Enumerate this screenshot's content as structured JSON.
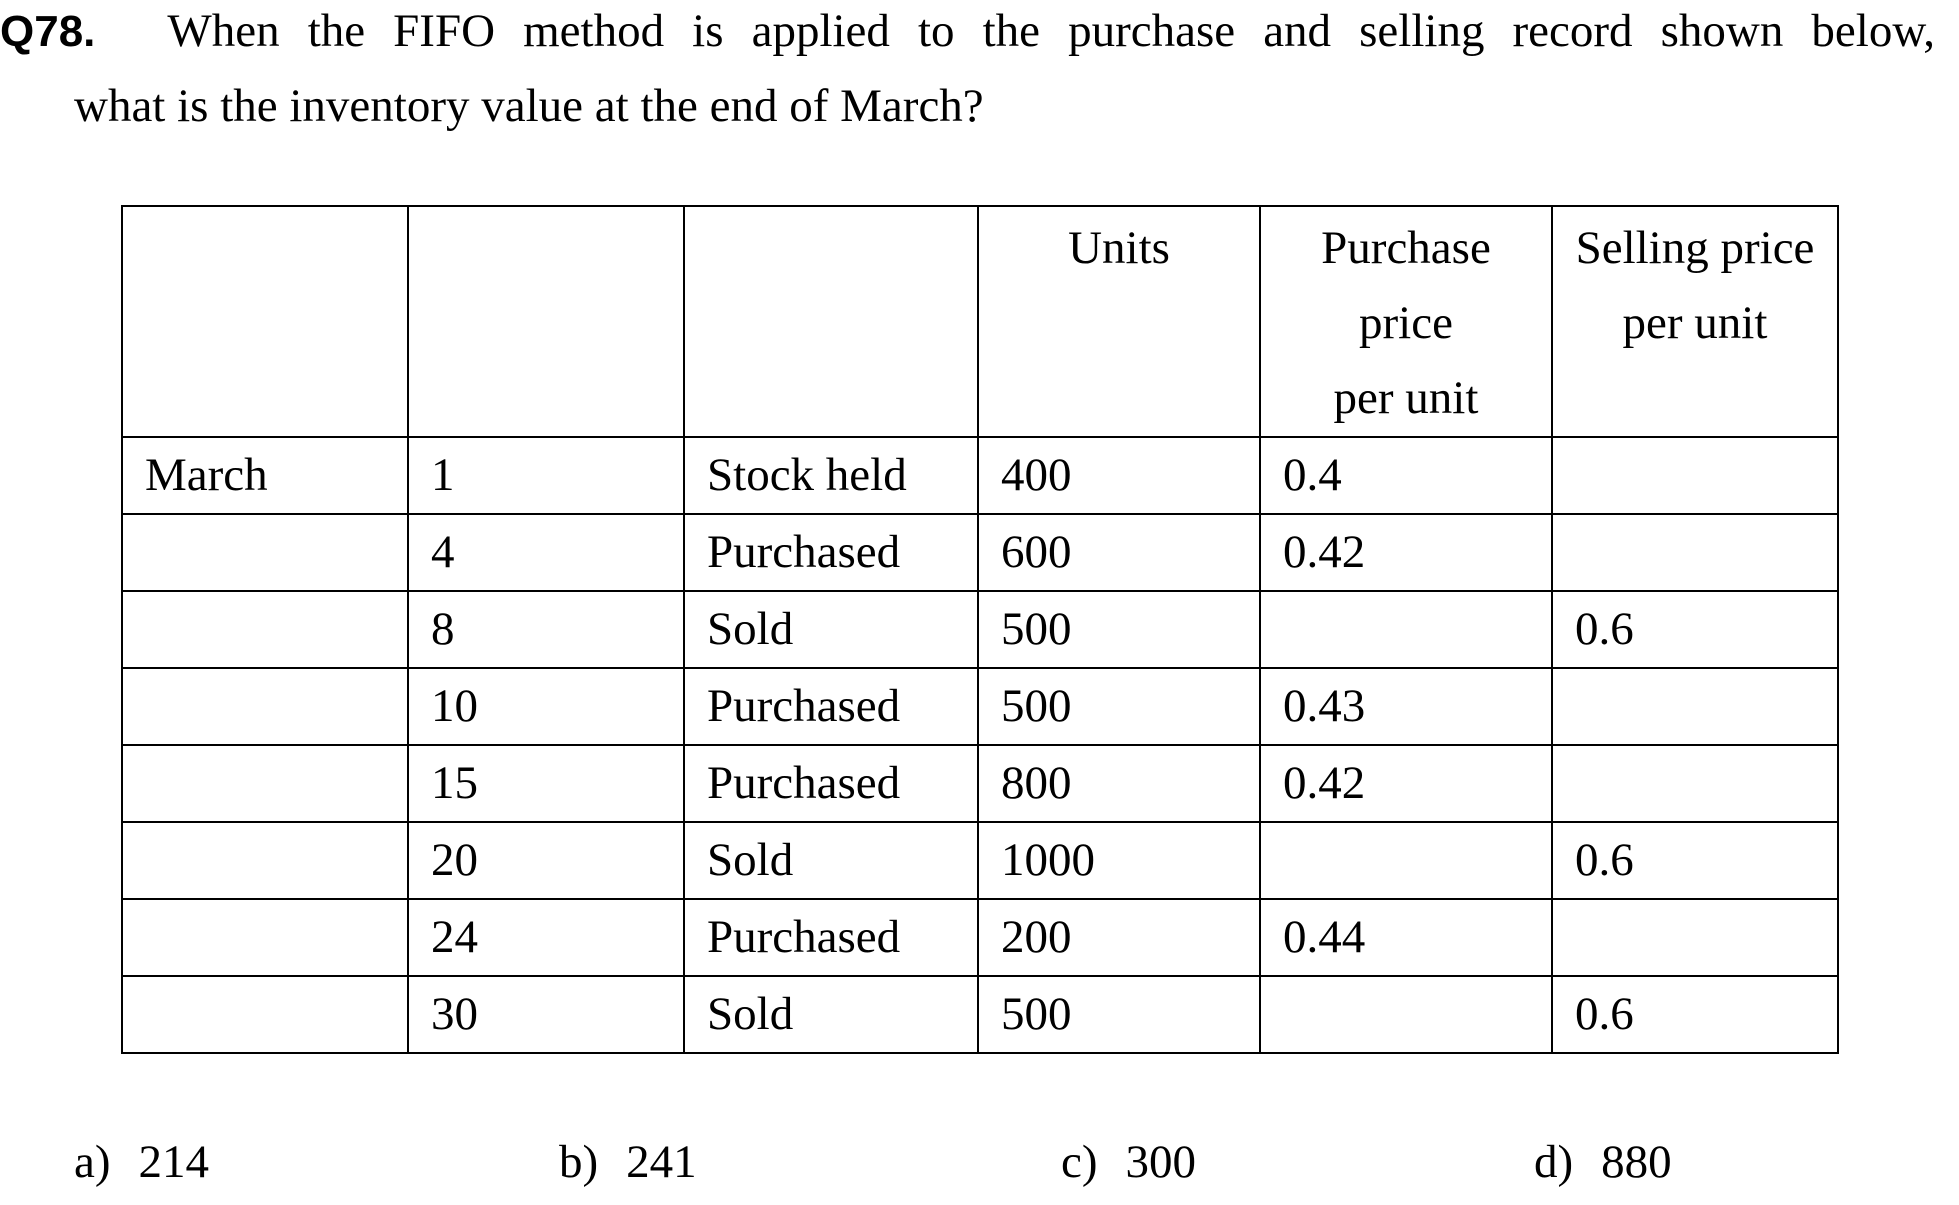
{
  "question": {
    "number": "Q78.",
    "line1_words": [
      "When",
      "the",
      "FIFO",
      "method",
      "is",
      "applied",
      "to",
      "the",
      "purchase",
      "and",
      "selling",
      "record",
      "shown",
      "below,"
    ],
    "line2": "what is the inventory value at the end of March?"
  },
  "table": {
    "headers": [
      "",
      "",
      "",
      "Units",
      "Purchase\nprice\nper unit",
      "Selling price\nper unit"
    ],
    "rows": [
      [
        "March",
        "1",
        "Stock held",
        "400",
        "0.4",
        ""
      ],
      [
        "",
        "4",
        "Purchased",
        "600",
        "0.42",
        ""
      ],
      [
        "",
        "8",
        "Sold",
        "500",
        "",
        "0.6"
      ],
      [
        "",
        "10",
        "Purchased",
        "500",
        "0.43",
        ""
      ],
      [
        "",
        "15",
        "Purchased",
        "800",
        "0.42",
        ""
      ],
      [
        "",
        "20",
        "Sold",
        "1000",
        "",
        "0.6"
      ],
      [
        "",
        "24",
        "Purchased",
        "200",
        "0.44",
        ""
      ],
      [
        "",
        "30",
        "Sold",
        "500",
        "",
        "0.6"
      ]
    ]
  },
  "answers": [
    {
      "letter": "a)",
      "value": "214"
    },
    {
      "letter": "b)",
      "value": "241"
    },
    {
      "letter": "c)",
      "value": "300"
    },
    {
      "letter": "d)",
      "value": "880"
    }
  ]
}
